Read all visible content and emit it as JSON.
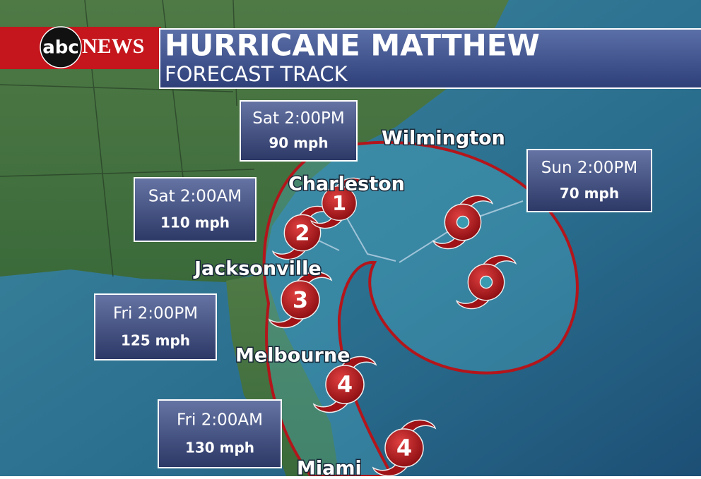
{
  "header": {
    "logo": {
      "abc": "abc",
      "news": "NEWS"
    },
    "title": "HURRICANE MATTHEW",
    "subtitle": "FORECAST TRACK"
  },
  "cities": [
    "Wilmington",
    "Charleston",
    "Jacksonville",
    "Melbourne",
    "Miami"
  ],
  "forecasts": [
    {
      "time": "Sat 2:00PM",
      "wind": "90 mph"
    },
    {
      "time": "Sun 2:00PM",
      "wind": "70 mph"
    },
    {
      "time": "Sat 2:00AM",
      "wind": "110 mph"
    },
    {
      "time": "Fri 2:00PM",
      "wind": "125 mph"
    },
    {
      "time": "Fri 2:00AM",
      "wind": "130 mph"
    }
  ],
  "storm_symbols": [
    {
      "category": 4
    },
    {
      "category": 4
    },
    {
      "category": 3
    },
    {
      "category": 2
    },
    {
      "category": 1
    }
  ]
}
